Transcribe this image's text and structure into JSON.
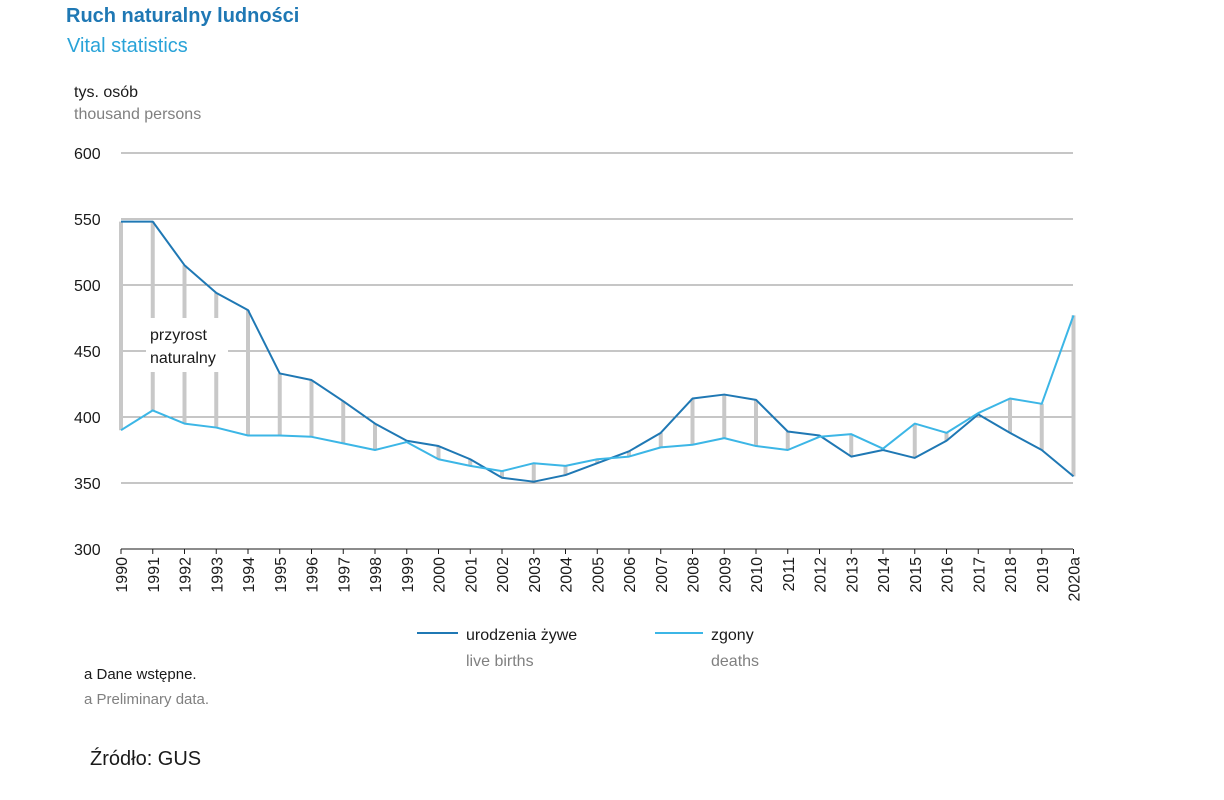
{
  "header": {
    "title_pl": "Ruch naturalny ludności",
    "title_en": "Vital statistics"
  },
  "unit": {
    "pl": "tys. osób",
    "en": "thousand persons"
  },
  "annotation": {
    "line1": "przyrost",
    "line2": "naturalny"
  },
  "legend": {
    "births_pl": "urodzenia żywe",
    "births_en": "live births",
    "deaths_pl": "zgony",
    "deaths_en": "deaths"
  },
  "footnote": {
    "pl": "a Dane wstępne.",
    "en": "a Preliminary data."
  },
  "source": "Źródło: GUS",
  "colors": {
    "births": "#1f78b4",
    "deaths": "#3cb6e6",
    "gap": "#c8c8c8",
    "grid": "#8c8c8c"
  },
  "chart_data": {
    "type": "line",
    "title": "Ruch naturalny ludności / Vital statistics",
    "ylabel": "tys. osób / thousand persons",
    "xlabel": "",
    "ylim": [
      300,
      600
    ],
    "yticks": [
      300,
      350,
      400,
      450,
      500,
      550,
      600
    ],
    "grid": true,
    "legend_position": "bottom",
    "x": [
      "1990",
      "1991",
      "1992",
      "1993",
      "1994",
      "1995",
      "1996",
      "1997",
      "1998",
      "1999",
      "2000",
      "2001",
      "2002",
      "2003",
      "2004",
      "2005",
      "2006",
      "2007",
      "2008",
      "2009",
      "2010",
      "2011",
      "2012",
      "2013",
      "2014",
      "2015",
      "2016",
      "2017",
      "2018",
      "2019",
      "2020a"
    ],
    "series": [
      {
        "name": "urodzenia żywe / live births",
        "values": [
          548,
          548,
          515,
          494,
          481,
          433,
          428,
          412,
          395,
          382,
          378,
          368,
          354,
          351,
          356,
          365,
          374,
          388,
          414,
          417,
          413,
          389,
          386,
          370,
          375,
          369,
          382,
          402,
          388,
          375,
          355
        ]
      },
      {
        "name": "zgony / deaths",
        "values": [
          390,
          405,
          395,
          392,
          386,
          386,
          385,
          380,
          375,
          381,
          368,
          363,
          359,
          365,
          363,
          368,
          370,
          377,
          379,
          384,
          378,
          375,
          385,
          387,
          376,
          395,
          388,
          403,
          414,
          410,
          477
        ]
      }
    ]
  }
}
